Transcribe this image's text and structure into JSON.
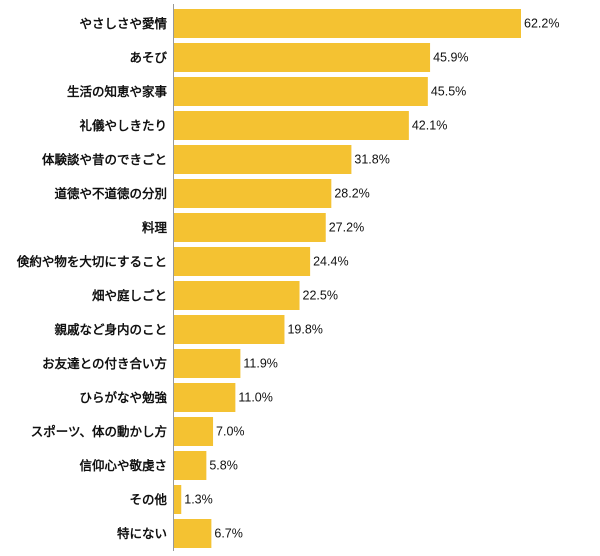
{
  "chart_data": {
    "type": "bar",
    "orientation": "horizontal",
    "title": "",
    "xlabel": "",
    "ylabel": "",
    "xlim": [
      0,
      100
    ],
    "grid": false,
    "legend": "none",
    "bar_color": "#F4C232",
    "value_suffix": "%",
    "categories": [
      "やさしさや愛情",
      "あそび",
      "生活の知恵や家事",
      "礼儀やしきたり",
      "体験談や昔のできごと",
      "道徳や不道徳の分別",
      "料理",
      "倹約や物を大切にすること",
      "畑や庭しごと",
      "親戚など身内のこと",
      "お友達との付き合い方",
      "ひらがなや勉強",
      "スポーツ、体の動かし方",
      "信仰心や敬虔さ",
      "その他",
      "特にない"
    ],
    "values": [
      62.2,
      45.9,
      45.5,
      42.1,
      31.8,
      28.2,
      27.2,
      24.4,
      22.5,
      19.8,
      11.9,
      11.0,
      7.0,
      5.8,
      1.3,
      6.7
    ],
    "value_labels": [
      "62.2%",
      "45.9%",
      "45.5%",
      "42.1%",
      "31.8%",
      "28.2%",
      "27.2%",
      "24.4%",
      "22.5%",
      "19.8%",
      "11.9%",
      "11.0%",
      "7.0%",
      "5.8%",
      "1.3%",
      "6.7%"
    ]
  }
}
